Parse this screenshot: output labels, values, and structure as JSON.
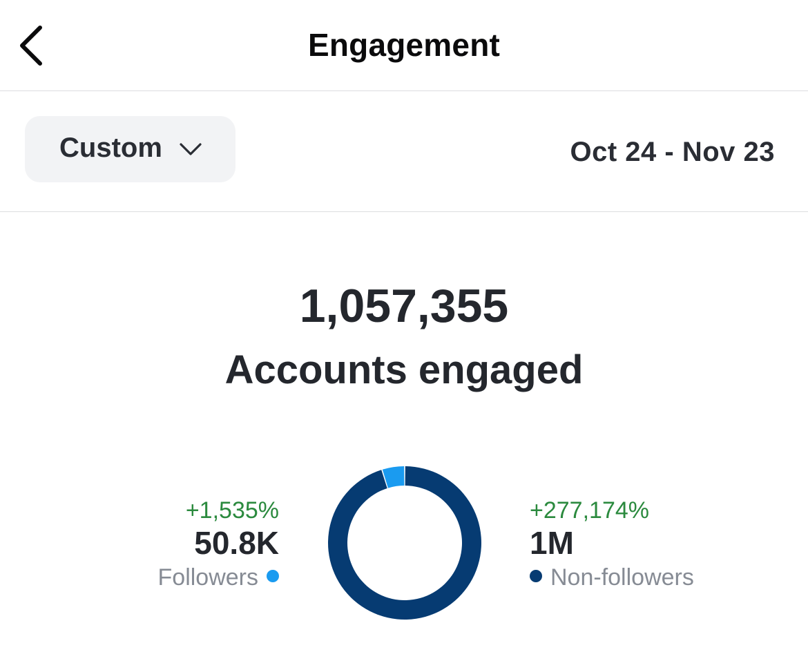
{
  "header": {
    "title": "Engagement",
    "back_icon": "chevron-left-icon"
  },
  "filter": {
    "range_label": "Custom",
    "dropdown_icon": "chevron-down-icon",
    "date_range": "Oct 24 - Nov 23"
  },
  "summary": {
    "total": "1,057,355",
    "label": "Accounts engaged"
  },
  "breakdown": {
    "followers": {
      "change": "+1,535%",
      "value": "50.8K",
      "label": "Followers",
      "color": "#1a9bf0"
    },
    "non_followers": {
      "change": "+277,174%",
      "value": "1M",
      "label": "Non-followers",
      "color": "#063b72"
    }
  },
  "chart_data": {
    "type": "pie",
    "donut": true,
    "categories": [
      "Followers",
      "Non-followers"
    ],
    "values": [
      50800,
      1006555
    ],
    "colors": [
      "#1a9bf0",
      "#063b72"
    ]
  }
}
